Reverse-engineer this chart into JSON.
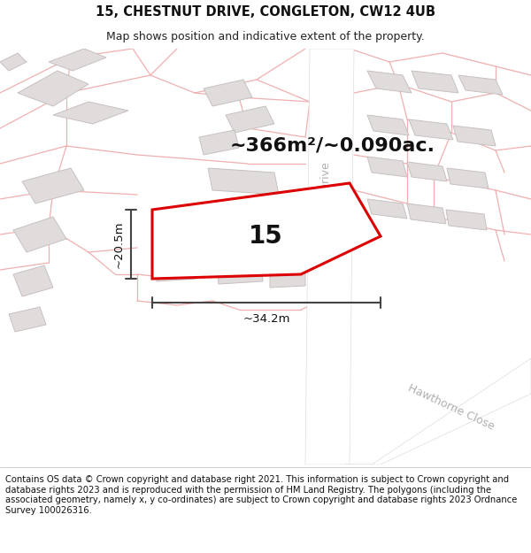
{
  "title_line1": "15, CHESTNUT DRIVE, CONGLETON, CW12 4UB",
  "title_line2": "Map shows position and indicative extent of the property.",
  "footer_text": "Contains OS data © Crown copyright and database right 2021. This information is subject to Crown copyright and database rights 2023 and is reproduced with the permission of HM Land Registry. The polygons (including the associated geometry, namely x, y co-ordinates) are subject to Crown copyright and database rights 2023 Ordnance Survey 100026316.",
  "area_label": "~366m²/~0.090ac.",
  "number_label": "15",
  "width_label": "~34.2m",
  "height_label": "~20.5m",
  "map_bg": "#f7f5f5",
  "plot_fill": "#ffffff",
  "plot_edge": "#dd0000",
  "road_fill": "#f5dada",
  "road_edge": "#e8b0b0",
  "bld_fill": "#e0dcdc",
  "bld_edge": "#c8c0c0",
  "cad_line": "#f0b0b0",
  "dim_color": "#444444",
  "street_color": "#b0b0b0",
  "title_fontsize": 10.5,
  "subtitle_fontsize": 9,
  "footer_fontsize": 7.2,
  "area_fontsize": 16,
  "num_fontsize": 20,
  "dim_fontsize": 9.5,
  "street_fontsize": 9,
  "figsize": [
    6.0,
    6.25
  ],
  "dpi": 100
}
